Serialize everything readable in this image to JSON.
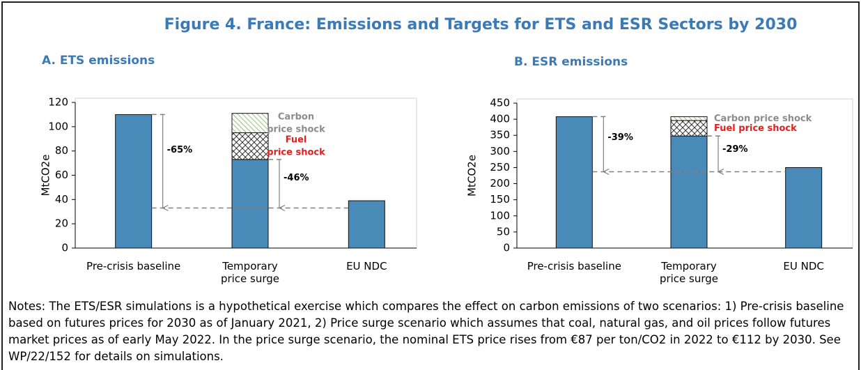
{
  "title": "Figure 4. France: Emissions and Targets for ETS and ESR Sectors by 2030",
  "chart_data": [
    {
      "type": "bar",
      "stacked": true,
      "title": "A. ETS emissions",
      "ylabel": "MtCO2e",
      "categories": [
        "Pre-crisis baseline",
        "Temporary\nprice surge",
        "EU NDC"
      ],
      "series": [
        {
          "color": "#4a8ab8",
          "values": [
            110,
            73,
            39
          ]
        },
        {
          "name": "Fuel\nprice shock",
          "color": "#000000",
          "pattern": "crosshatch",
          "label_color": "#e02020",
          "values": [
            null,
            22,
            null
          ]
        },
        {
          "name": "Carbon\nprice shock",
          "color": "#70ad47",
          "pattern": "diagonal",
          "label_color": "#8c8c8c",
          "values": [
            null,
            16,
            null
          ]
        }
      ],
      "ylim": [
        0,
        120
      ],
      "yticks": [
        0,
        20,
        40,
        60,
        80,
        100,
        120
      ],
      "target": 33,
      "annotations": [
        {
          "text": "-65%",
          "from": 110,
          "to": 33
        },
        {
          "text": "-46%",
          "from": 73,
          "to": 33
        }
      ]
    },
    {
      "type": "bar",
      "stacked": true,
      "title": "B. ESR emissions",
      "ylabel": "MtCO2e",
      "categories": [
        "Pre-crisis baseline",
        "Temporary\nprice surge",
        "EU NDC"
      ],
      "series": [
        {
          "color": "#4a8ab8",
          "values": [
            408,
            348,
            250
          ]
        },
        {
          "name": "Fuel price shock",
          "color": "#000000",
          "pattern": "crosshatch",
          "label_color": "#e02020",
          "values": [
            null,
            48,
            null
          ]
        },
        {
          "name": "Carbon price shock",
          "color": "#70ad47",
          "pattern": "diagonal",
          "label_color": "#8c8c8c",
          "values": [
            null,
            12,
            null
          ]
        }
      ],
      "ylim": [
        0,
        450
      ],
      "yticks": [
        0,
        50,
        100,
        150,
        200,
        250,
        300,
        350,
        400,
        450
      ],
      "target": 237,
      "annotations": [
        {
          "text": "-39%",
          "from": 408,
          "to": 237
        },
        {
          "text": "-29%",
          "from": 348,
          "to": 237
        }
      ]
    }
  ],
  "notes": "Notes: The ETS/ESR simulations is a hypothetical exercise which compares the effect on carbon emissions of two scenarios: 1) Pre-crisis baseline based on futures prices for 2030 as of January 2021, 2) Price surge scenario which assumes that coal, natural gas, and oil prices follow futures market prices as of early May 2022. In the price surge scenario, the nominal ETS price rises from €87 per ton/CO2 in 2022 to €112 by 2030. See WP/22/152 for details on simulations."
}
